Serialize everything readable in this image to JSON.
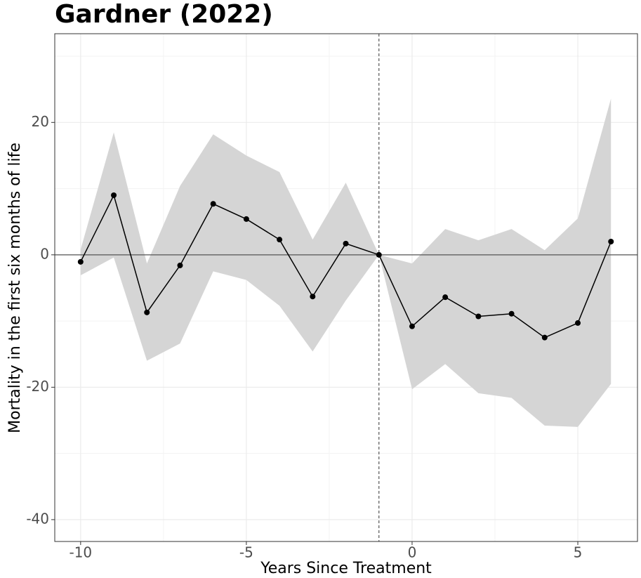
{
  "chart_data": {
    "type": "line",
    "title": "Gardner (2022)",
    "xlabel": "Years Since Treatment",
    "ylabel": "Mortality in the first six months of life",
    "x": [
      -10,
      -9,
      -8,
      -7,
      -6,
      -5,
      -4,
      -3,
      -2,
      -1,
      0,
      1,
      2,
      3,
      4,
      5,
      6
    ],
    "series": [
      {
        "color": "#000000",
        "band_color": "#d5d5d5",
        "values": [
          -1.06,
          9.0,
          -8.7,
          -1.6,
          7.7,
          5.4,
          2.3,
          -6.3,
          1.7,
          0,
          -10.8,
          -6.4,
          -9.3,
          -8.9,
          -12.5,
          -10.3,
          2.0
        ],
        "upper": [
          0.8,
          18.5,
          -1.3,
          10.4,
          18.2,
          15.0,
          12.5,
          2.3,
          10.9,
          0,
          -1.3,
          3.9,
          2.2,
          3.9,
          0.7,
          5.5,
          23.6
        ],
        "lower": [
          -3.1,
          -0.4,
          -16.0,
          -13.4,
          -2.5,
          -3.8,
          -7.7,
          -14.6,
          -6.9,
          0,
          -20.3,
          -16.5,
          -20.9,
          -21.6,
          -25.8,
          -26.0,
          -19.5
        ]
      }
    ],
    "vline": -1,
    "hline": 0,
    "xlim": [
      -10.78,
      6.8
    ],
    "ylim": [
      -43.3,
      33.4
    ],
    "xticks": [
      -10,
      -5,
      0,
      5
    ],
    "yticks": [
      -40,
      -20,
      0,
      20
    ],
    "grid": true
  }
}
